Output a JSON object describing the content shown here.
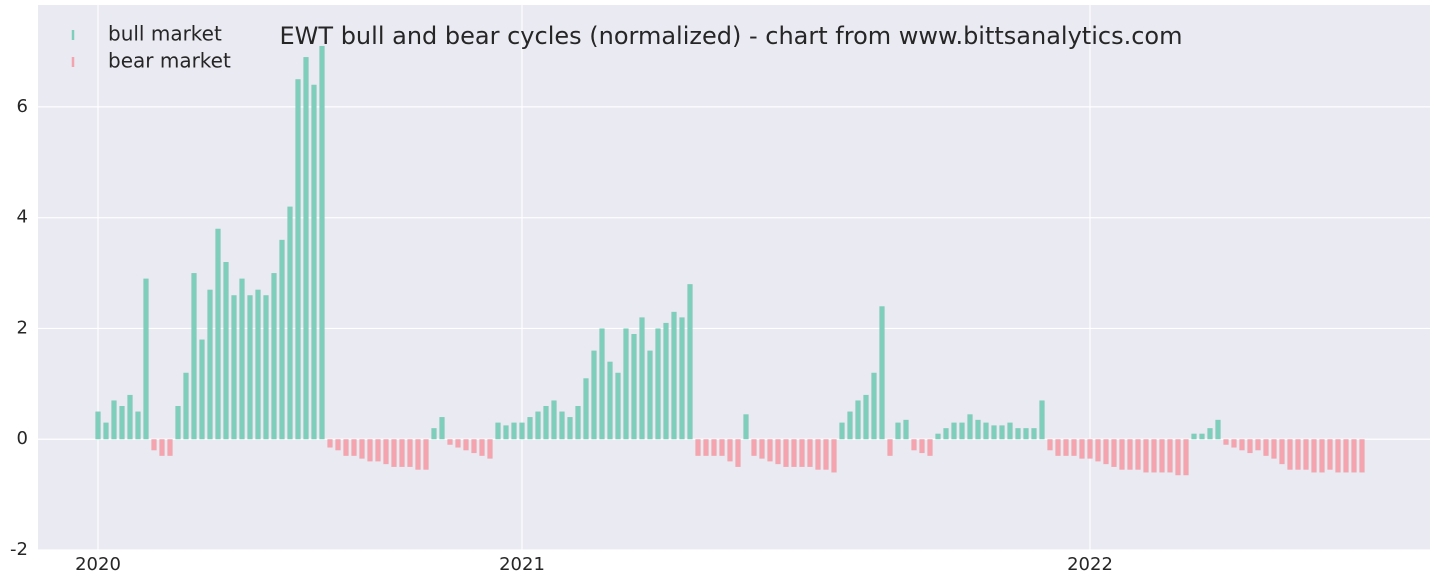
{
  "chart_data": {
    "type": "bar",
    "title": "EWT bull and bear cycles (normalized)  - chart from www.bittsanalytics.com",
    "xlim": [
      -7.5,
      166.5
    ],
    "xticks": [
      {
        "value": 0,
        "label": "2020"
      },
      {
        "value": 53,
        "label": "2021"
      },
      {
        "value": 124,
        "label": "2022"
      }
    ],
    "ylim": [
      -2,
      7.84
    ],
    "yticks": [
      -2,
      0,
      2,
      4,
      6
    ],
    "grid": true,
    "legend": "upper left",
    "series": [
      {
        "name": "bull market",
        "color": "#7fcdbb",
        "x": [
          0,
          1,
          2,
          3,
          4,
          5,
          6,
          10,
          11,
          12,
          13,
          14,
          15,
          16,
          17,
          18,
          19,
          20,
          21,
          22,
          23,
          24,
          25,
          26,
          27,
          28,
          42,
          43,
          50,
          51,
          52,
          53,
          54,
          55,
          56,
          57,
          58,
          59,
          60,
          61,
          62,
          63,
          64,
          65,
          66,
          67,
          68,
          69,
          70,
          71,
          72,
          73,
          74,
          81,
          93,
          94,
          95,
          96,
          97,
          98,
          100,
          101,
          105,
          106,
          107,
          108,
          109,
          110,
          111,
          112,
          113,
          114,
          115,
          116,
          117,
          118,
          137,
          138,
          139,
          140
        ],
        "values": [
          0.5,
          0.3,
          0.7,
          0.6,
          0.8,
          0.5,
          2.9,
          0.6,
          1.2,
          3.0,
          1.8,
          2.7,
          3.8,
          3.2,
          2.6,
          2.9,
          2.6,
          2.7,
          2.6,
          3.0,
          3.6,
          4.2,
          6.5,
          6.9,
          6.4,
          7.1,
          0.2,
          0.4,
          0.3,
          0.25,
          0.3,
          0.3,
          0.4,
          0.5,
          0.6,
          0.7,
          0.5,
          0.4,
          0.6,
          1.1,
          1.6,
          2.0,
          1.4,
          1.2,
          2.0,
          1.9,
          2.2,
          1.6,
          2.0,
          2.1,
          2.3,
          2.2,
          2.8,
          0.45,
          0.3,
          0.5,
          0.7,
          0.8,
          1.2,
          2.4,
          0.3,
          0.35,
          0.1,
          0.2,
          0.3,
          0.3,
          0.45,
          0.35,
          0.3,
          0.25,
          0.25,
          0.3,
          0.2,
          0.2,
          0.2,
          0.7,
          0.1,
          0.1,
          0.2,
          0.35
        ]
      },
      {
        "name": "bear market",
        "color": "#f4a4ae",
        "x": [
          7,
          8,
          9,
          29,
          30,
          31,
          32,
          33,
          34,
          35,
          36,
          37,
          38,
          39,
          40,
          41,
          44,
          45,
          46,
          47,
          48,
          49,
          75,
          76,
          77,
          78,
          79,
          80,
          82,
          83,
          84,
          85,
          86,
          87,
          88,
          89,
          90,
          91,
          92,
          99,
          102,
          103,
          104,
          119,
          120,
          121,
          122,
          123,
          124,
          125,
          126,
          127,
          128,
          129,
          130,
          131,
          132,
          133,
          134,
          135,
          136,
          141,
          142,
          143,
          144,
          145,
          146,
          147,
          148,
          149,
          150,
          151,
          152,
          153,
          154,
          155,
          156,
          157,
          158
        ],
        "values": [
          -0.2,
          -0.3,
          -0.3,
          -0.15,
          -0.2,
          -0.3,
          -0.3,
          -0.35,
          -0.4,
          -0.4,
          -0.45,
          -0.5,
          -0.5,
          -0.5,
          -0.55,
          -0.55,
          -0.1,
          -0.15,
          -0.2,
          -0.25,
          -0.3,
          -0.35,
          -0.3,
          -0.3,
          -0.3,
          -0.3,
          -0.4,
          -0.5,
          -0.3,
          -0.35,
          -0.4,
          -0.45,
          -0.5,
          -0.5,
          -0.5,
          -0.5,
          -0.55,
          -0.55,
          -0.6,
          -0.3,
          -0.2,
          -0.25,
          -0.3,
          -0.2,
          -0.3,
          -0.3,
          -0.3,
          -0.35,
          -0.35,
          -0.4,
          -0.45,
          -0.5,
          -0.55,
          -0.55,
          -0.55,
          -0.6,
          -0.6,
          -0.6,
          -0.6,
          -0.65,
          -0.65,
          -0.1,
          -0.15,
          -0.2,
          -0.25,
          -0.2,
          -0.3,
          -0.35,
          -0.45,
          -0.55,
          -0.55,
          -0.55,
          -0.6,
          -0.6,
          -0.55,
          -0.6,
          -0.6,
          -0.6,
          -0.6
        ]
      }
    ]
  }
}
